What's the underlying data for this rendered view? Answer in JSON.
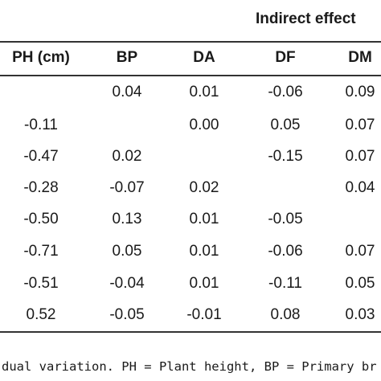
{
  "table": {
    "group_title": "Indirect effect",
    "columns": [
      "PH (cm)",
      "BP",
      "DA",
      "DF",
      "DM"
    ],
    "rows": [
      [
        "",
        "0.04",
        "0.01",
        "-0.06",
        "0.09"
      ],
      [
        "-0.11",
        "",
        "0.00",
        "0.05",
        "0.07"
      ],
      [
        "-0.47",
        "0.02",
        "",
        "-0.15",
        "0.07"
      ],
      [
        "-0.28",
        "-0.07",
        "0.02",
        "",
        "0.04"
      ],
      [
        "-0.50",
        "0.13",
        "0.01",
        "-0.05",
        ""
      ],
      [
        "-0.71",
        "0.05",
        "0.01",
        "-0.06",
        "0.07"
      ],
      [
        "-0.51",
        "-0.04",
        "0.01",
        "-0.11",
        "0.05"
      ],
      [
        "0.52",
        "-0.05",
        "-0.01",
        "0.08",
        "0.03"
      ]
    ]
  },
  "footnote": "dual variation. PH = Plant height, BP = Primary br"
}
